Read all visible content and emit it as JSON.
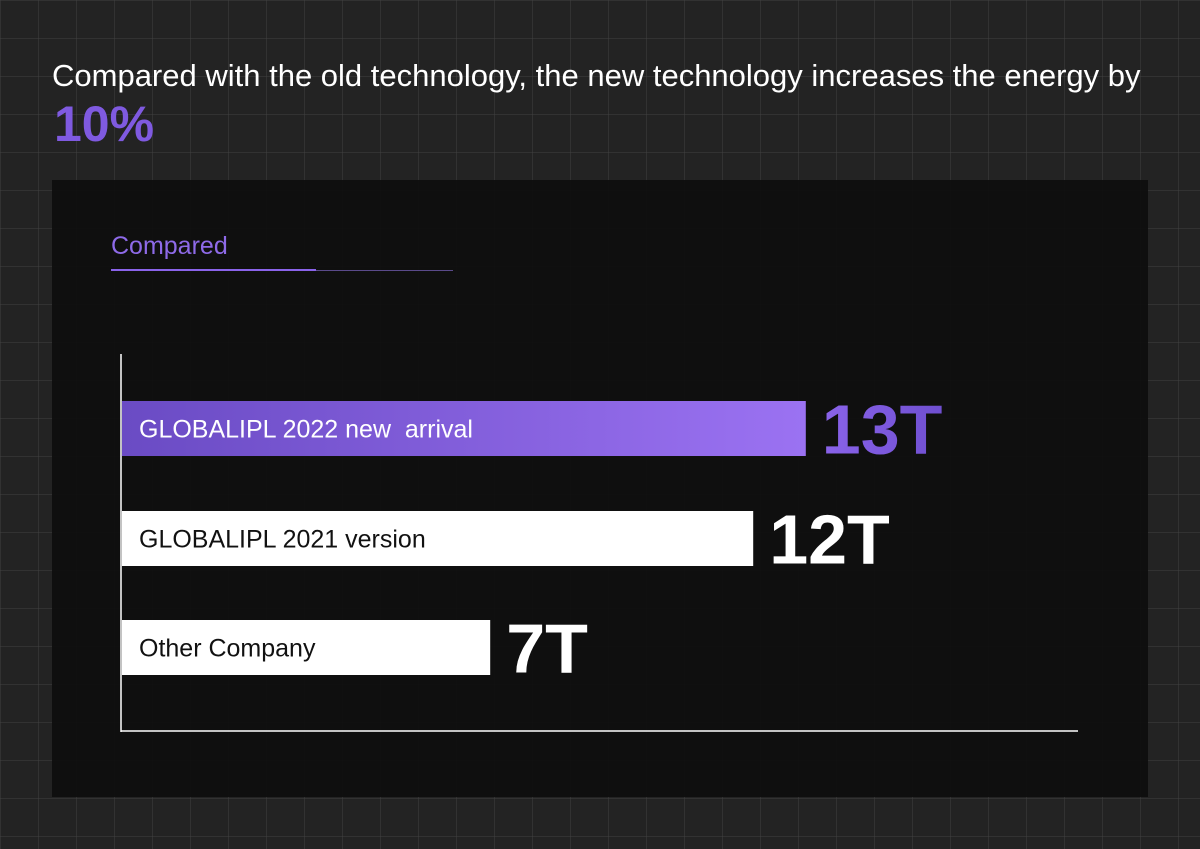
{
  "headline": {
    "text": "Compared with the old technology, the new technology increases the energy by",
    "highlight": "10%"
  },
  "panel": {
    "section_label": "Compared"
  },
  "colors": {
    "accent": "#7f5ae0",
    "accent_light": "#9b72f2",
    "bar_default": "#ffffff",
    "label_on_accent": "#ffffff",
    "label_on_default": "#111111",
    "value_on_default": "#ffffff"
  },
  "chart_data": {
    "type": "bar",
    "orientation": "horizontal",
    "categories": [
      "GLOBALIPL 2022 new  arrival",
      "GLOBALIPL 2021 version",
      "Other Company"
    ],
    "values": [
      13,
      12,
      7
    ],
    "value_labels": [
      "13T",
      "12T",
      "7T"
    ],
    "highlight_index": 0,
    "title": "",
    "xlabel": "",
    "ylabel": "",
    "grid": false,
    "legend": "none"
  }
}
